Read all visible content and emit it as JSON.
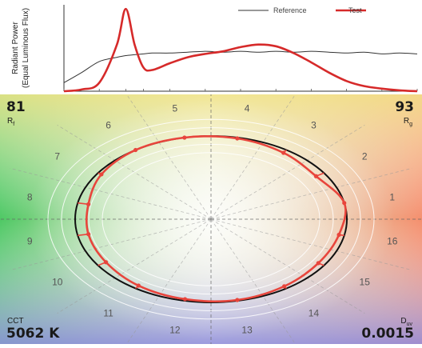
{
  "chart_data": [
    {
      "type": "line",
      "ylabel": "Radiant Power (Equal Luminous Flux)",
      "legend": [
        "Reference",
        "Test"
      ],
      "legend_position": "top-right",
      "colors": {
        "Reference": "#333333",
        "Test": "#d62a2a"
      },
      "x": [
        380,
        400,
        420,
        440,
        450,
        460,
        470,
        480,
        500,
        520,
        540,
        560,
        580,
        600,
        620,
        640,
        660,
        680,
        700,
        720,
        740,
        760,
        780
      ],
      "xlim": [
        380,
        780
      ],
      "ylim": [
        0,
        1
      ],
      "series": [
        {
          "name": "Reference",
          "values": [
            0.1,
            0.22,
            0.35,
            0.4,
            0.42,
            0.43,
            0.44,
            0.45,
            0.45,
            0.46,
            0.47,
            0.46,
            0.47,
            0.46,
            0.47,
            0.46,
            0.47,
            0.46,
            0.45,
            0.46,
            0.44,
            0.45,
            0.44
          ]
        },
        {
          "name": "Test",
          "values": [
            0.0,
            0.02,
            0.1,
            0.55,
            0.97,
            0.55,
            0.28,
            0.25,
            0.33,
            0.4,
            0.44,
            0.47,
            0.52,
            0.55,
            0.53,
            0.45,
            0.34,
            0.22,
            0.12,
            0.06,
            0.03,
            0.01,
            0.0
          ]
        }
      ]
    },
    {
      "type": "scatter",
      "subtype": "color-vector-graphic",
      "hue_bins": [
        "1",
        "2",
        "3",
        "4",
        "5",
        "6",
        "7",
        "8",
        "9",
        "10",
        "11",
        "12",
        "13",
        "14",
        "15",
        "16"
      ],
      "reference_radius": 1.0,
      "test_radii": [
        1.0,
        0.93,
        0.96,
        0.99,
        1.0,
        1.0,
        0.97,
        0.92,
        0.92,
        0.93,
        0.96,
        0.98,
        0.99,
        0.97,
        0.95,
        0.96
      ],
      "ring_levels": [
        0.8,
        0.9,
        1.1,
        1.2
      ],
      "colors": {
        "reference": "#111111",
        "test": "#e8453c",
        "rings": "#ffffff"
      },
      "grid": true
    }
  ],
  "metrics": {
    "rf_value": "81",
    "rf_label": "R",
    "rf_sub": "f",
    "rg_value": "93",
    "rg_label": "R",
    "rg_sub": "g",
    "cct_label": "CCT",
    "cct_value": "5062 K",
    "duv_label": "D",
    "duv_sub": "uv",
    "duv_value": "0.0015"
  }
}
